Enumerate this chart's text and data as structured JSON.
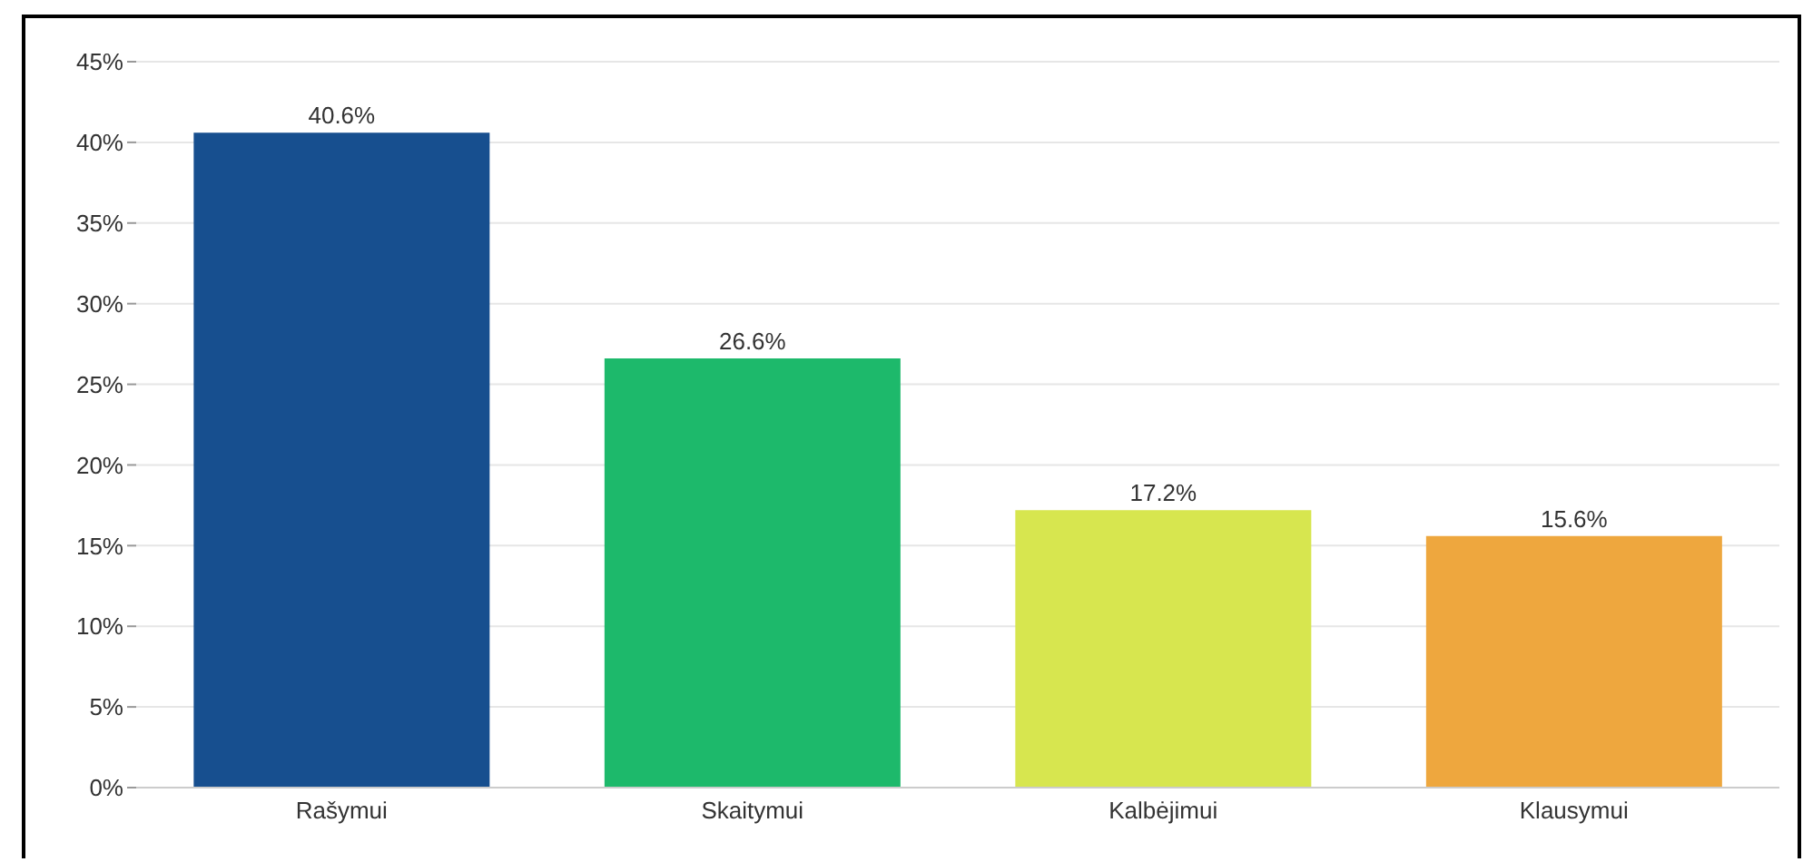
{
  "chart_data": {
    "type": "bar",
    "categories": [
      "Rašymui",
      "Skaitymui",
      "Kalbėjimui",
      "Klausymui"
    ],
    "values": [
      40.6,
      26.6,
      17.2,
      15.6
    ],
    "colors": [
      "#174f8f",
      "#1db96b",
      "#d7e64f",
      "#eea73e"
    ],
    "value_labels": [
      "40.6%",
      "26.6%",
      "17.2%",
      "15.6%"
    ],
    "ylim": [
      0,
      45
    ],
    "yticks": [
      {
        "value": 0,
        "label": "0%"
      },
      {
        "value": 5,
        "label": "5%"
      },
      {
        "value": 10,
        "label": "10%"
      },
      {
        "value": 15,
        "label": "15%"
      },
      {
        "value": 20,
        "label": "20%"
      },
      {
        "value": 25,
        "label": "25%"
      },
      {
        "value": 30,
        "label": "30%"
      },
      {
        "value": 35,
        "label": "35%"
      },
      {
        "value": 40,
        "label": "40%"
      },
      {
        "value": 45,
        "label": "45%"
      }
    ],
    "grid": "y",
    "legend": false
  }
}
